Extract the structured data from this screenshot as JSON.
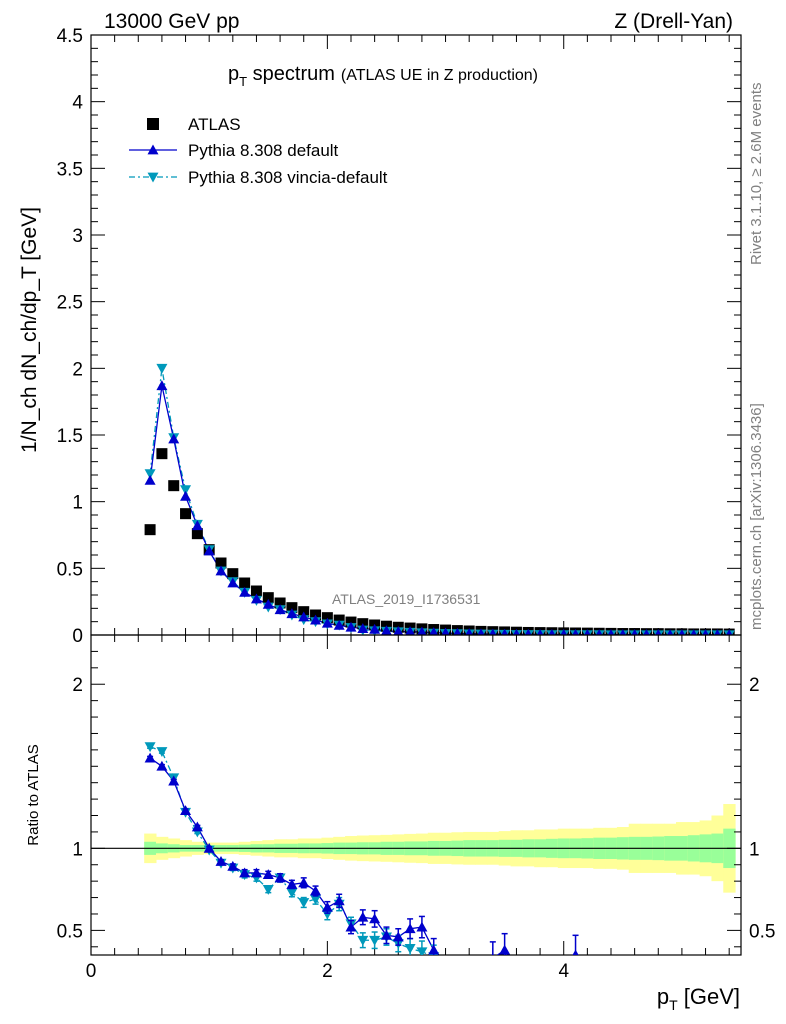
{
  "header": {
    "left": "13000 GeV pp",
    "right": "Z (Drell-Yan)"
  },
  "side_text": {
    "rivet": "Rivet 3.1.10, ≥ 2.6M events",
    "mcplots": "mcplots.cern.ch [arXiv:1306.3436]"
  },
  "chart_data": [
    {
      "type": "scatter",
      "title_main": "p",
      "title_sub": "T",
      "title_rest": " spectrum",
      "title_note": "(ATLAS UE in Z production)",
      "watermark": "ATLAS_2019_I1736531",
      "ylabel": "1/N_ch dN_ch/dp_T [GeV]",
      "xlim": [
        0,
        5.5
      ],
      "ylim": [
        0,
        4.5
      ],
      "yticks": [
        "0",
        "0.5",
        "1",
        "1.5",
        "2",
        "2.5",
        "3",
        "3.5",
        "4",
        "4.5"
      ],
      "legend_placement": "top-left",
      "legend": [
        "ATLAS",
        "Pythia 8.308 default",
        "Pythia 8.308 vincia-default"
      ],
      "x": [
        0.5,
        0.6,
        0.7,
        0.8,
        0.9,
        1.0,
        1.1,
        1.2,
        1.3,
        1.4,
        1.5,
        1.6,
        1.7,
        1.8,
        1.9,
        2.0,
        2.1,
        2.2,
        2.3,
        2.4,
        2.5,
        2.6,
        2.7,
        2.8,
        2.9,
        3.0,
        3.1,
        3.2,
        3.3,
        3.4,
        3.5,
        3.6,
        3.7,
        3.8,
        3.9,
        4.0,
        4.1,
        4.2,
        4.3,
        4.4,
        4.5,
        4.6,
        4.7,
        4.8,
        4.9,
        5.0,
        5.1,
        5.2,
        5.3,
        5.4
      ],
      "series": [
        {
          "name": "ATLAS",
          "color": "#000000",
          "values": [
            0.79,
            1.36,
            1.12,
            0.91,
            0.76,
            0.64,
            0.54,
            0.46,
            0.39,
            0.33,
            0.28,
            0.24,
            0.205,
            0.175,
            0.15,
            0.13,
            0.112,
            0.097,
            0.085,
            0.075,
            0.066,
            0.058,
            0.052,
            0.046,
            0.041,
            0.037,
            0.033,
            0.03,
            0.027,
            0.025,
            0.023,
            0.021,
            0.019,
            0.018,
            0.017,
            0.016,
            0.015,
            0.014,
            0.013,
            0.012,
            0.011,
            0.011,
            0.01,
            0.01,
            0.009,
            0.009,
            0.008,
            0.008,
            0.008,
            0.007
          ]
        },
        {
          "name": "Pythia 8.308 default",
          "color": "#0000cc",
          "values": [
            1.16,
            1.87,
            1.47,
            1.04,
            0.82,
            0.63,
            0.48,
            0.39,
            0.32,
            0.27,
            0.23,
            0.19,
            0.16,
            0.135,
            0.112,
            0.088,
            0.072,
            0.058,
            0.048,
            0.042,
            0.032,
            0.026,
            0.025,
            0.022,
            0.018,
            0.015,
            0.012,
            0.01,
            0.008,
            0.007,
            0.006,
            0.005,
            0.005,
            0.004,
            0.004,
            0.004,
            0.004,
            0.003,
            0.003,
            0.003,
            0.003,
            0.003,
            0.003,
            0.003,
            0.002,
            0.002,
            0.002,
            0.002,
            0.002,
            0.002
          ]
        },
        {
          "name": "Pythia 8.308 vincia-default",
          "color": "#0099bb",
          "values": [
            1.21,
            2.0,
            1.48,
            1.09,
            0.83,
            0.64,
            0.48,
            0.4,
            0.32,
            0.26,
            0.21,
            0.19,
            0.15,
            0.115,
            0.1,
            0.083,
            0.074,
            0.056,
            0.037,
            0.032,
            0.028,
            0.024,
            0.02,
            0.017,
            0.014,
            0.011,
            0.01,
            0.008,
            0.007,
            0.006,
            0.005,
            0.004,
            0.004,
            0.004,
            0.003,
            0.003,
            0.003,
            0.003,
            0.003,
            0.002,
            0.002,
            0.002,
            0.002,
            0.002,
            0.002,
            0.002,
            0.002,
            0.002,
            0.002,
            0.002
          ]
        }
      ]
    },
    {
      "type": "scatter",
      "ylabel": "Ratio to ATLAS",
      "xlabel_main": "p",
      "xlabel_sub": "T",
      "xlabel_rest": " [GeV]",
      "xlim": [
        0,
        5.5
      ],
      "ylim": [
        0.35,
        2.3
      ],
      "xticks": [
        "0",
        "2",
        "4"
      ],
      "yticks": [
        "0.5",
        "1",
        "2"
      ],
      "x": [
        0.5,
        0.6,
        0.7,
        0.8,
        0.9,
        1.0,
        1.1,
        1.2,
        1.3,
        1.4,
        1.5,
        1.6,
        1.7,
        1.8,
        1.9,
        2.0,
        2.1,
        2.2,
        2.3,
        2.4,
        2.5,
        2.6,
        2.7,
        2.8,
        2.9,
        3.4,
        3.5,
        4.1
      ],
      "band_x": [
        0.5,
        0.6,
        0.7,
        0.8,
        0.9,
        1.0,
        1.1,
        1.2,
        1.3,
        1.4,
        1.5,
        1.6,
        1.7,
        1.8,
        1.9,
        2.0,
        2.1,
        2.2,
        2.3,
        2.4,
        2.5,
        2.6,
        2.7,
        2.8,
        2.9,
        3.0,
        3.1,
        3.2,
        3.3,
        3.4,
        3.5,
        3.6,
        3.7,
        3.8,
        3.9,
        4.0,
        4.1,
        4.2,
        4.3,
        4.4,
        4.5,
        4.6,
        4.7,
        4.8,
        4.9,
        5.0,
        5.1,
        5.2,
        5.3,
        5.4
      ],
      "band_green": [
        0.04,
        0.03,
        0.025,
        0.02,
        0.02,
        0.02,
        0.02,
        0.02,
        0.022,
        0.025,
        0.025,
        0.028,
        0.028,
        0.03,
        0.03,
        0.032,
        0.035,
        0.035,
        0.037,
        0.037,
        0.04,
        0.04,
        0.042,
        0.042,
        0.045,
        0.045,
        0.047,
        0.05,
        0.05,
        0.05,
        0.052,
        0.052,
        0.055,
        0.055,
        0.058,
        0.06,
        0.06,
        0.062,
        0.065,
        0.065,
        0.068,
        0.07,
        0.07,
        0.072,
        0.075,
        0.075,
        0.08,
        0.085,
        0.09,
        0.12
      ],
      "band_yellow": [
        0.09,
        0.07,
        0.06,
        0.05,
        0.04,
        0.035,
        0.035,
        0.035,
        0.04,
        0.045,
        0.05,
        0.055,
        0.055,
        0.06,
        0.06,
        0.065,
        0.07,
        0.075,
        0.078,
        0.08,
        0.082,
        0.085,
        0.088,
        0.09,
        0.095,
        0.095,
        0.098,
        0.1,
        0.1,
        0.1,
        0.105,
        0.11,
        0.11,
        0.115,
        0.115,
        0.12,
        0.12,
        0.12,
        0.125,
        0.125,
        0.13,
        0.15,
        0.15,
        0.15,
        0.15,
        0.16,
        0.16,
        0.17,
        0.2,
        0.27
      ],
      "series": [
        {
          "name": "Pythia 8.308 default",
          "color": "#0000cc",
          "values": [
            1.55,
            1.5,
            1.41,
            1.23,
            1.13,
            1.0,
            0.92,
            0.89,
            0.85,
            0.85,
            0.84,
            0.82,
            0.78,
            0.79,
            0.74,
            0.64,
            0.68,
            0.52,
            0.58,
            0.57,
            0.47,
            0.46,
            0.51,
            0.52,
            0.38,
            0.33,
            0.38,
            0.35
          ],
          "errors": [
            0.01,
            0.01,
            0.01,
            0.01,
            0.01,
            0.01,
            0.01,
            0.015,
            0.02,
            0.02,
            0.02,
            0.025,
            0.025,
            0.03,
            0.03,
            0.035,
            0.04,
            0.04,
            0.045,
            0.05,
            0.05,
            0.05,
            0.06,
            0.065,
            0.07,
            0.1,
            0.1,
            0.12
          ]
        },
        {
          "name": "Pythia 8.308 vincia-default",
          "color": "#0099bb",
          "values": [
            1.62,
            1.59,
            1.43,
            1.22,
            1.1,
            0.99,
            0.91,
            0.88,
            0.84,
            0.82,
            0.75,
            0.82,
            0.73,
            0.67,
            0.69,
            0.6,
            0.66,
            0.54,
            0.44,
            0.44,
            0.46,
            0.42,
            0.39,
            0.37,
            0.34
          ],
          "errors": [
            0.01,
            0.01,
            0.01,
            0.01,
            0.01,
            0.01,
            0.01,
            0.015,
            0.02,
            0.02,
            0.02,
            0.025,
            0.025,
            0.03,
            0.03,
            0.035,
            0.04,
            0.04,
            0.045,
            0.05,
            0.05,
            0.05,
            0.06,
            0.065,
            0.07
          ]
        }
      ]
    }
  ]
}
